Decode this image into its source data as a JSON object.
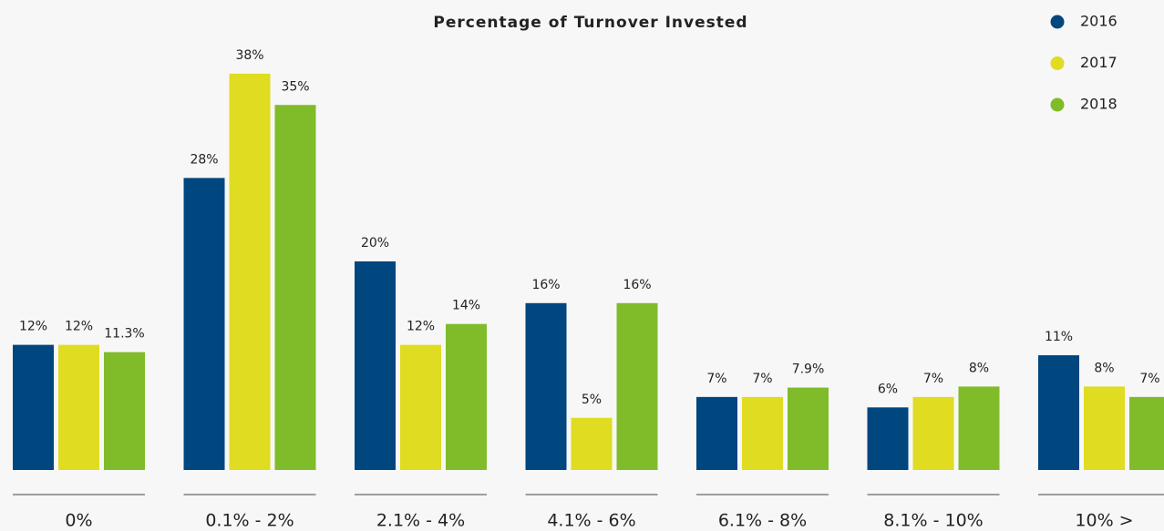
{
  "chart_data": {
    "type": "bar",
    "title": "Percentage of Turnover Invested",
    "categories": [
      "0%",
      "0.1% - 2%",
      "2.1% - 4%",
      "4.1% - 6%",
      "6.1% - 8%",
      "8.1% - 10%",
      "10% >"
    ],
    "series": [
      {
        "name": "2016",
        "color": "#00467f",
        "values": [
          12,
          28,
          20,
          16,
          7,
          6,
          11
        ],
        "value_labels": [
          "12%",
          "28%",
          "20%",
          "16%",
          "7%",
          "6%",
          "11%"
        ]
      },
      {
        "name": "2017",
        "color": "#dfdc22",
        "values": [
          12,
          38,
          12,
          5,
          7,
          7,
          8
        ],
        "value_labels": [
          "12%",
          "38%",
          "12%",
          "5%",
          "7%",
          "7%",
          "8%"
        ]
      },
      {
        "name": "2018",
        "color": "#80bb2a",
        "values": [
          11.3,
          35,
          14,
          16,
          7.9,
          8,
          7
        ],
        "value_labels": [
          "11.3%",
          "35%",
          "14%",
          "16%",
          "7.9%",
          "8%",
          "7%"
        ]
      }
    ],
    "legend": "top-right"
  }
}
